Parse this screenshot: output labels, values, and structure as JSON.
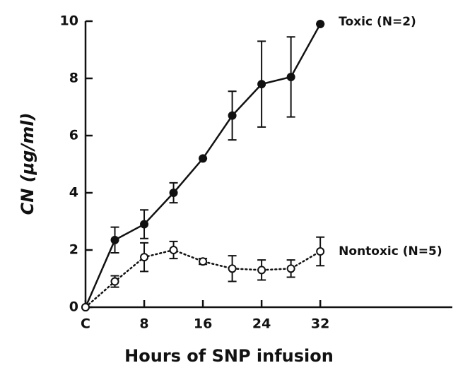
{
  "chart_data": {
    "type": "line",
    "xlabel": "Hours of SNP infusion",
    "ylabel": "CN   (μg/ml)",
    "x": [
      0,
      4,
      8,
      12,
      16,
      20,
      24,
      28,
      32
    ],
    "series": [
      {
        "name": "Toxic (N=2)",
        "color": "#111111",
        "marker": "filled",
        "dashed": false,
        "values": [
          0,
          2.35,
          2.9,
          4.0,
          5.2,
          6.7,
          7.8,
          8.05,
          9.9
        ],
        "errors": [
          0,
          0.45,
          0.5,
          0.35,
          0,
          0.85,
          1.5,
          1.4,
          0
        ]
      },
      {
        "name": "Nontoxic (N=5)",
        "color": "#111111",
        "marker": "open",
        "dashed": true,
        "values": [
          0,
          0.9,
          1.75,
          2.0,
          1.6,
          1.35,
          1.3,
          1.35,
          1.95
        ],
        "errors": [
          0,
          0.2,
          0.5,
          0.3,
          0.1,
          0.45,
          0.35,
          0.3,
          0.5
        ]
      }
    ],
    "xlim": [
      0,
      50
    ],
    "xticks": [
      {
        "value": 0,
        "label": "C"
      },
      8,
      16,
      24,
      32
    ],
    "ylim": [
      0,
      10
    ],
    "yticks": [
      0,
      2,
      4,
      6,
      8,
      10
    ]
  }
}
